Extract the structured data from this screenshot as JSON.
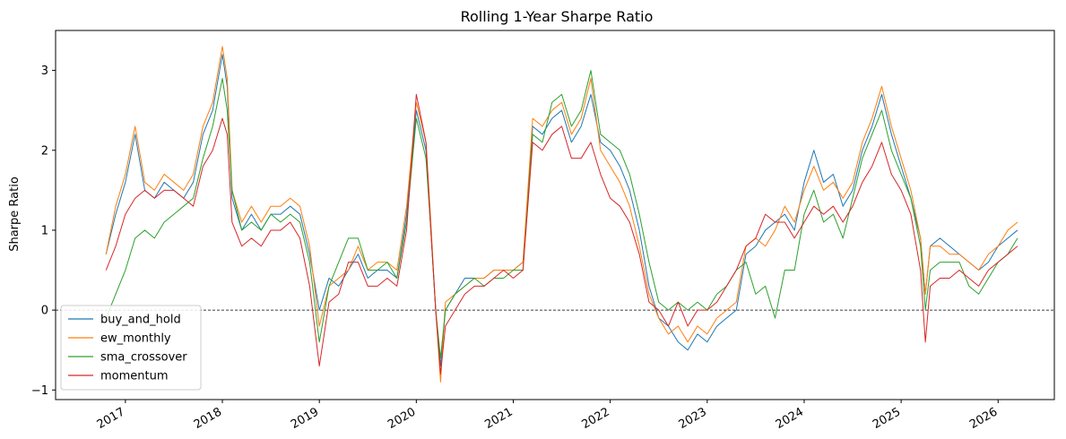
{
  "chart_data": {
    "type": "line",
    "title": "Rolling 1-Year Sharpe Ratio",
    "xlabel": "",
    "ylabel": "Sharpe Ratio",
    "xlim": [
      2016.28,
      2026.58
    ],
    "ylim": [
      -1.12,
      3.5
    ],
    "x_ticks": [
      2017,
      2018,
      2019,
      2020,
      2021,
      2022,
      2023,
      2024,
      2025,
      2026
    ],
    "x_tick_labels": [
      "2017",
      "2018",
      "2019",
      "2020",
      "2021",
      "2022",
      "2023",
      "2024",
      "2025",
      "2026"
    ],
    "y_ticks": [
      -1,
      0,
      1,
      2,
      3
    ],
    "y_tick_labels": [
      "−1",
      "0",
      "1",
      "2",
      "3"
    ],
    "zero_line": {
      "y": 0,
      "style": "dashed",
      "color": "#000000"
    },
    "grid": false,
    "legend_position": "lower-left",
    "series": [
      {
        "name": "buy_and_hold",
        "color": "#1f77b4",
        "x": [
          2016.8,
          2016.9,
          2017.0,
          2017.1,
          2017.2,
          2017.3,
          2017.4,
          2017.5,
          2017.6,
          2017.7,
          2017.8,
          2017.9,
          2018.0,
          2018.05,
          2018.1,
          2018.2,
          2018.3,
          2018.4,
          2018.5,
          2018.6,
          2018.7,
          2018.8,
          2018.9,
          2019.0,
          2019.1,
          2019.2,
          2019.3,
          2019.4,
          2019.5,
          2019.6,
          2019.7,
          2019.8,
          2019.9,
          2020.0,
          2020.1,
          2020.15,
          2020.2,
          2020.25,
          2020.3,
          2020.4,
          2020.5,
          2020.6,
          2020.7,
          2020.8,
          2020.9,
          2021.0,
          2021.1,
          2021.2,
          2021.3,
          2021.4,
          2021.5,
          2021.6,
          2021.7,
          2021.8,
          2021.9,
          2022.0,
          2022.1,
          2022.2,
          2022.3,
          2022.4,
          2022.5,
          2022.6,
          2022.7,
          2022.8,
          2022.9,
          2023.0,
          2023.1,
          2023.2,
          2023.3,
          2023.4,
          2023.5,
          2023.6,
          2023.7,
          2023.8,
          2023.9,
          2024.0,
          2024.1,
          2024.2,
          2024.3,
          2024.4,
          2024.5,
          2024.6,
          2024.7,
          2024.8,
          2024.9,
          2025.0,
          2025.1,
          2025.2,
          2025.25,
          2025.3,
          2025.4,
          2025.5,
          2025.6,
          2025.7,
          2025.8,
          2025.9,
          2026.0,
          2026.1,
          2026.2
        ],
        "values": [
          0.7,
          1.2,
          1.6,
          2.2,
          1.5,
          1.4,
          1.6,
          1.5,
          1.4,
          1.6,
          2.2,
          2.5,
          3.2,
          2.8,
          1.4,
          1.0,
          1.2,
          1.0,
          1.2,
          1.2,
          1.3,
          1.2,
          0.7,
          0.0,
          0.4,
          0.3,
          0.5,
          0.7,
          0.4,
          0.5,
          0.5,
          0.4,
          1.2,
          2.5,
          2.0,
          1.0,
          0.0,
          -0.7,
          0.0,
          0.2,
          0.4,
          0.4,
          0.4,
          0.5,
          0.5,
          0.5,
          0.6,
          2.3,
          2.2,
          2.4,
          2.5,
          2.1,
          2.3,
          2.7,
          2.1,
          2.0,
          1.8,
          1.5,
          1.0,
          0.3,
          -0.1,
          -0.2,
          -0.4,
          -0.5,
          -0.3,
          -0.4,
          -0.2,
          -0.1,
          0.0,
          0.7,
          0.8,
          1.0,
          1.1,
          1.2,
          1.0,
          1.6,
          2.0,
          1.6,
          1.7,
          1.3,
          1.5,
          2.0,
          2.3,
          2.7,
          2.2,
          1.8,
          1.4,
          0.9,
          0.2,
          0.8,
          0.9,
          0.8,
          0.7,
          0.6,
          0.5,
          0.6,
          0.8,
          0.9,
          1.0
        ]
      },
      {
        "name": "ew_monthly",
        "color": "#ff7f0e",
        "x": [
          2016.8,
          2016.9,
          2017.0,
          2017.1,
          2017.2,
          2017.3,
          2017.4,
          2017.5,
          2017.6,
          2017.7,
          2017.8,
          2017.9,
          2018.0,
          2018.05,
          2018.1,
          2018.2,
          2018.3,
          2018.4,
          2018.5,
          2018.6,
          2018.7,
          2018.8,
          2018.9,
          2019.0,
          2019.1,
          2019.2,
          2019.3,
          2019.4,
          2019.5,
          2019.6,
          2019.7,
          2019.8,
          2019.9,
          2020.0,
          2020.1,
          2020.15,
          2020.2,
          2020.25,
          2020.3,
          2020.4,
          2020.5,
          2020.6,
          2020.7,
          2020.8,
          2020.9,
          2021.0,
          2021.1,
          2021.2,
          2021.3,
          2021.4,
          2021.5,
          2021.6,
          2021.7,
          2021.8,
          2021.9,
          2022.0,
          2022.1,
          2022.2,
          2022.3,
          2022.4,
          2022.5,
          2022.6,
          2022.7,
          2022.8,
          2022.9,
          2023.0,
          2023.1,
          2023.2,
          2023.3,
          2023.4,
          2023.5,
          2023.6,
          2023.7,
          2023.8,
          2023.9,
          2024.0,
          2024.1,
          2024.2,
          2024.3,
          2024.4,
          2024.5,
          2024.6,
          2024.7,
          2024.8,
          2024.9,
          2025.0,
          2025.1,
          2025.2,
          2025.25,
          2025.3,
          2025.4,
          2025.5,
          2025.6,
          2025.7,
          2025.8,
          2025.9,
          2026.0,
          2026.1,
          2026.2
        ],
        "values": [
          0.7,
          1.3,
          1.7,
          2.3,
          1.6,
          1.5,
          1.7,
          1.6,
          1.5,
          1.7,
          2.3,
          2.6,
          3.3,
          2.9,
          1.5,
          1.1,
          1.3,
          1.1,
          1.3,
          1.3,
          1.4,
          1.3,
          0.8,
          -0.2,
          0.3,
          0.4,
          0.5,
          0.8,
          0.5,
          0.6,
          0.6,
          0.5,
          1.3,
          2.6,
          2.1,
          1.1,
          0.0,
          -0.9,
          0.1,
          0.2,
          0.3,
          0.4,
          0.4,
          0.5,
          0.5,
          0.5,
          0.6,
          2.4,
          2.3,
          2.5,
          2.6,
          2.2,
          2.4,
          2.9,
          2.0,
          1.8,
          1.6,
          1.3,
          0.8,
          0.2,
          -0.1,
          -0.3,
          -0.2,
          -0.4,
          -0.2,
          -0.3,
          -0.1,
          0.0,
          0.1,
          0.8,
          0.9,
          0.8,
          1.0,
          1.3,
          1.1,
          1.5,
          1.8,
          1.5,
          1.6,
          1.4,
          1.6,
          2.1,
          2.4,
          2.8,
          2.3,
          1.9,
          1.5,
          0.9,
          0.2,
          0.8,
          0.8,
          0.7,
          0.7,
          0.6,
          0.5,
          0.7,
          0.8,
          1.0,
          1.1
        ]
      },
      {
        "name": "sma_crossover",
        "color": "#2ca02c",
        "x": [
          2016.8,
          2016.9,
          2017.0,
          2017.1,
          2017.2,
          2017.3,
          2017.4,
          2017.5,
          2017.6,
          2017.7,
          2017.8,
          2017.9,
          2018.0,
          2018.05,
          2018.1,
          2018.2,
          2018.3,
          2018.4,
          2018.5,
          2018.6,
          2018.7,
          2018.8,
          2018.9,
          2019.0,
          2019.1,
          2019.2,
          2019.3,
          2019.4,
          2019.5,
          2019.6,
          2019.7,
          2019.8,
          2019.9,
          2020.0,
          2020.1,
          2020.15,
          2020.2,
          2020.25,
          2020.3,
          2020.4,
          2020.5,
          2020.6,
          2020.7,
          2020.8,
          2020.9,
          2021.0,
          2021.1,
          2021.2,
          2021.3,
          2021.4,
          2021.5,
          2021.6,
          2021.7,
          2021.8,
          2021.9,
          2022.0,
          2022.1,
          2022.2,
          2022.3,
          2022.4,
          2022.5,
          2022.6,
          2022.7,
          2022.8,
          2022.9,
          2023.0,
          2023.1,
          2023.2,
          2023.3,
          2023.4,
          2023.5,
          2023.6,
          2023.7,
          2023.8,
          2023.9,
          2024.0,
          2024.1,
          2024.2,
          2024.3,
          2024.4,
          2024.5,
          2024.6,
          2024.7,
          2024.8,
          2024.9,
          2025.0,
          2025.1,
          2025.2,
          2025.25,
          2025.3,
          2025.4,
          2025.5,
          2025.6,
          2025.7,
          2025.8,
          2025.9,
          2026.0,
          2026.1,
          2026.2
        ],
        "values": [
          -0.1,
          0.2,
          0.5,
          0.9,
          1.0,
          0.9,
          1.1,
          1.2,
          1.3,
          1.4,
          1.9,
          2.3,
          2.9,
          2.5,
          1.5,
          1.0,
          1.1,
          1.0,
          1.2,
          1.1,
          1.2,
          1.1,
          0.6,
          -0.4,
          0.3,
          0.6,
          0.9,
          0.9,
          0.5,
          0.5,
          0.6,
          0.4,
          1.1,
          2.4,
          1.9,
          1.0,
          0.0,
          -0.6,
          0.0,
          0.2,
          0.3,
          0.4,
          0.3,
          0.4,
          0.4,
          0.5,
          0.5,
          2.2,
          2.1,
          2.6,
          2.7,
          2.3,
          2.5,
          3.0,
          2.2,
          2.1,
          2.0,
          1.7,
          1.2,
          0.6,
          0.1,
          0.0,
          0.1,
          0.0,
          0.1,
          0.0,
          0.2,
          0.3,
          0.5,
          0.6,
          0.2,
          0.3,
          -0.1,
          0.5,
          0.5,
          1.2,
          1.5,
          1.1,
          1.2,
          0.9,
          1.4,
          1.9,
          2.2,
          2.5,
          2.0,
          1.7,
          1.4,
          0.8,
          0.0,
          0.5,
          0.6,
          0.6,
          0.6,
          0.3,
          0.2,
          0.4,
          0.6,
          0.7,
          0.9
        ]
      },
      {
        "name": "momentum",
        "color": "#d62728",
        "x": [
          2016.8,
          2016.9,
          2017.0,
          2017.1,
          2017.2,
          2017.3,
          2017.4,
          2017.5,
          2017.6,
          2017.7,
          2017.8,
          2017.9,
          2018.0,
          2018.05,
          2018.1,
          2018.2,
          2018.3,
          2018.4,
          2018.5,
          2018.6,
          2018.7,
          2018.8,
          2018.9,
          2019.0,
          2019.1,
          2019.2,
          2019.3,
          2019.4,
          2019.5,
          2019.6,
          2019.7,
          2019.8,
          2019.9,
          2020.0,
          2020.1,
          2020.15,
          2020.2,
          2020.25,
          2020.3,
          2020.4,
          2020.5,
          2020.6,
          2020.7,
          2020.8,
          2020.9,
          2021.0,
          2021.1,
          2021.2,
          2021.3,
          2021.4,
          2021.5,
          2021.6,
          2021.7,
          2021.8,
          2021.9,
          2022.0,
          2022.1,
          2022.2,
          2022.3,
          2022.4,
          2022.5,
          2022.6,
          2022.7,
          2022.8,
          2022.9,
          2023.0,
          2023.1,
          2023.2,
          2023.3,
          2023.4,
          2023.5,
          2023.6,
          2023.7,
          2023.8,
          2023.9,
          2024.0,
          2024.1,
          2024.2,
          2024.3,
          2024.4,
          2024.5,
          2024.6,
          2024.7,
          2024.8,
          2024.9,
          2025.0,
          2025.1,
          2025.2,
          2025.25,
          2025.3,
          2025.4,
          2025.5,
          2025.6,
          2025.7,
          2025.8,
          2025.9,
          2026.0,
          2026.1,
          2026.2
        ],
        "values": [
          0.5,
          0.8,
          1.2,
          1.4,
          1.5,
          1.4,
          1.5,
          1.5,
          1.4,
          1.3,
          1.8,
          2.0,
          2.4,
          2.2,
          1.1,
          0.8,
          0.9,
          0.8,
          1.0,
          1.0,
          1.1,
          0.9,
          0.3,
          -0.7,
          0.1,
          0.2,
          0.6,
          0.6,
          0.3,
          0.3,
          0.4,
          0.3,
          1.0,
          2.7,
          2.1,
          1.0,
          0.0,
          -0.8,
          -0.2,
          0.0,
          0.2,
          0.3,
          0.3,
          0.4,
          0.5,
          0.4,
          0.5,
          2.1,
          2.0,
          2.2,
          2.3,
          1.9,
          1.9,
          2.1,
          1.7,
          1.4,
          1.3,
          1.1,
          0.7,
          0.1,
          0.0,
          -0.2,
          0.1,
          -0.2,
          0.0,
          0.0,
          0.1,
          0.3,
          0.5,
          0.8,
          0.9,
          1.2,
          1.1,
          1.1,
          0.9,
          1.1,
          1.3,
          1.2,
          1.3,
          1.1,
          1.3,
          1.6,
          1.8,
          2.1,
          1.7,
          1.5,
          1.2,
          0.5,
          -0.4,
          0.3,
          0.4,
          0.4,
          0.5,
          0.4,
          0.3,
          0.5,
          0.6,
          0.7,
          0.8
        ]
      }
    ]
  }
}
